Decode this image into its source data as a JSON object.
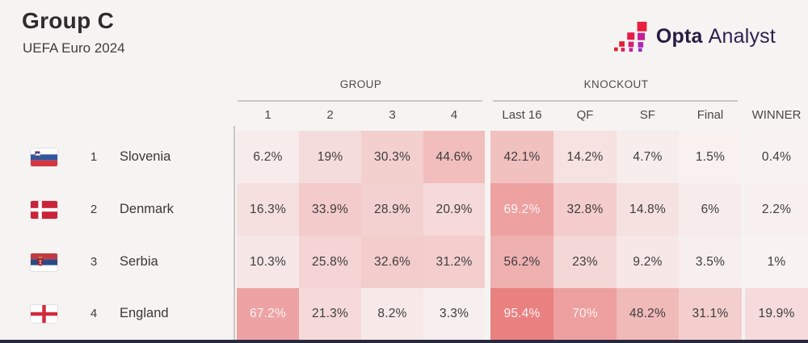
{
  "header": {
    "title": "Group C",
    "subtitle": "UEFA Euro 2024"
  },
  "logo": {
    "opta": "Opta",
    "analyst": "Analyst",
    "mark_colors": [
      "#e7203d",
      "#d12168",
      "#c6208e",
      "#9a2cc4"
    ]
  },
  "table": {
    "group_label": "GROUP",
    "knockout_label": "KNOCKOUT",
    "winner_label": "WINNER",
    "group_columns": [
      "1",
      "2",
      "3",
      "4"
    ],
    "knockout_columns": [
      "Last 16",
      "QF",
      "SF",
      "Final"
    ],
    "rows": [
      {
        "rank": "1",
        "team": "Slovenia",
        "flag_icon": "slovenia-flag-icon",
        "cells": [
          "6.2%",
          "19%",
          "30.3%",
          "44.6%",
          "42.1%",
          "14.2%",
          "4.7%",
          "1.5%",
          "0.4%"
        ]
      },
      {
        "rank": "2",
        "team": "Denmark",
        "flag_icon": "denmark-flag-icon",
        "cells": [
          "16.3%",
          "33.9%",
          "28.9%",
          "20.9%",
          "69.2%",
          "32.8%",
          "14.8%",
          "6%",
          "2.2%"
        ]
      },
      {
        "rank": "3",
        "team": "Serbia",
        "flag_icon": "serbia-flag-icon",
        "cells": [
          "10.3%",
          "25.8%",
          "32.6%",
          "31.2%",
          "56.2%",
          "23%",
          "9.2%",
          "3.5%",
          "1%"
        ]
      },
      {
        "rank": "4",
        "team": "England",
        "flag_icon": "england-flag-icon",
        "cells": [
          "67.2%",
          "21.3%",
          "8.2%",
          "3.3%",
          "95.4%",
          "70%",
          "48.2%",
          "31.1%",
          "19.9%"
        ]
      }
    ]
  },
  "heatmap": {
    "min_color": "#f8f3f2",
    "max_color": "#e87c7c",
    "dark_text": "#3d3d3d",
    "light_text": "#fdf2f2",
    "light_text_threshold": 60
  },
  "chart_data": {
    "type": "heatmap",
    "title": "Group C",
    "subtitle": "UEFA Euro 2024",
    "columns": [
      "1",
      "2",
      "3",
      "4",
      "Last 16",
      "QF",
      "SF",
      "Final",
      "WINNER"
    ],
    "column_groups": [
      {
        "label": "GROUP",
        "columns": [
          "1",
          "2",
          "3",
          "4"
        ]
      },
      {
        "label": "KNOCKOUT",
        "columns": [
          "Last 16",
          "QF",
          "SF",
          "Final"
        ]
      }
    ],
    "rows": [
      "Slovenia",
      "Denmark",
      "Serbia",
      "England"
    ],
    "values_percent": [
      [
        6.2,
        19,
        30.3,
        44.6,
        42.1,
        14.2,
        4.7,
        1.5,
        0.4
      ],
      [
        16.3,
        33.9,
        28.9,
        20.9,
        69.2,
        32.8,
        14.8,
        6,
        2.2
      ],
      [
        10.3,
        25.8,
        32.6,
        31.2,
        56.2,
        23,
        9.2,
        3.5,
        1
      ],
      [
        67.2,
        21.3,
        8.2,
        3.3,
        95.4,
        70,
        48.2,
        31.1,
        19.9
      ]
    ],
    "color_scale": {
      "min_value": 0,
      "max_value": 100,
      "min_color": "#f8f3f2",
      "max_color": "#e87c7c"
    },
    "legend": "none",
    "grid": "off"
  }
}
